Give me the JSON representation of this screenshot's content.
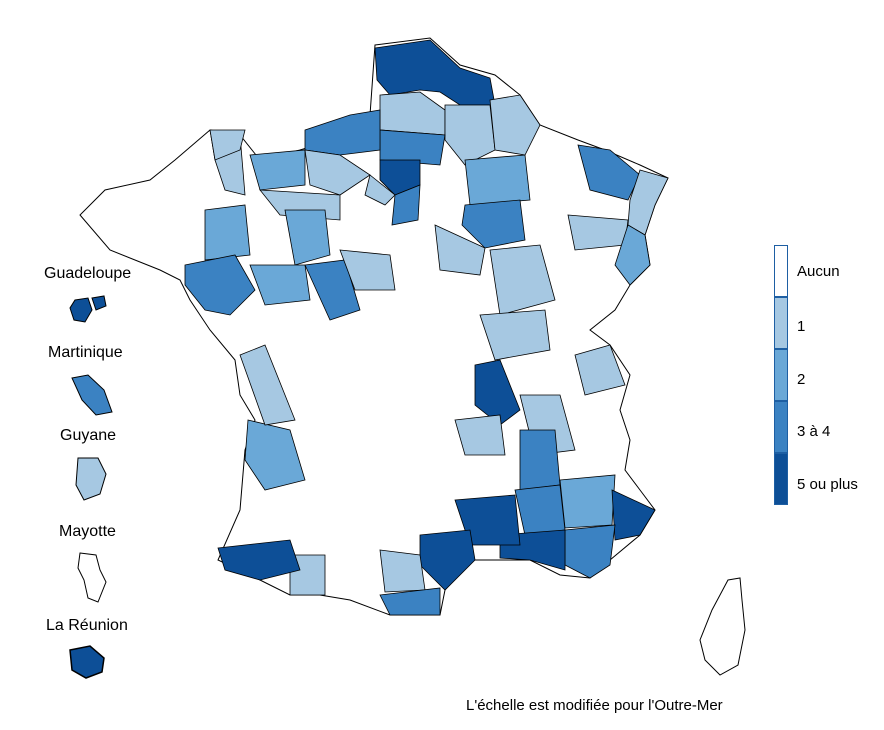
{
  "legend": {
    "items": [
      {
        "label": "Aucun",
        "color": "#ffffff"
      },
      {
        "label": "1",
        "color": "#a6c8e2"
      },
      {
        "label": "2",
        "color": "#6aa8d7"
      },
      {
        "label": "3 à 4",
        "color": "#3b82c2"
      },
      {
        "label": "5 ou plus",
        "color": "#0d4f97"
      }
    ]
  },
  "overseas": {
    "guadeloupe": {
      "label": "Guadeloupe",
      "class": "5 ou plus"
    },
    "martinique": {
      "label": "Martinique",
      "class": "3 à 4"
    },
    "guyane": {
      "label": "Guyane",
      "class": "1"
    },
    "mayotte": {
      "label": "Mayotte",
      "class": "Aucun"
    },
    "reunion": {
      "label": "La Réunion",
      "class": "5 ou plus"
    }
  },
  "note": "L'échelle est modifiée pour l'Outre-Mer"
}
